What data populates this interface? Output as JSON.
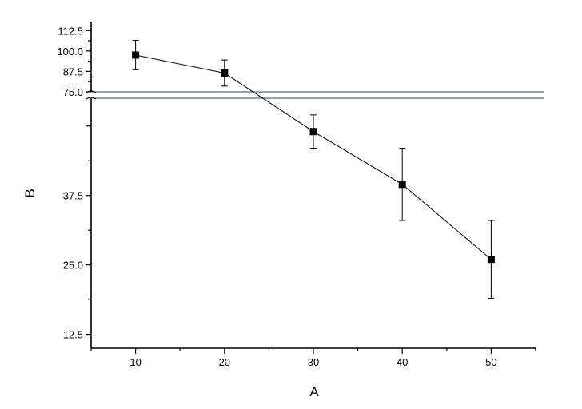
{
  "chart_data": {
    "type": "line",
    "title": "",
    "xlabel": "A",
    "ylabel": "B",
    "xlim": [
      5,
      55
    ],
    "x_ticks": [
      10,
      20,
      30,
      40,
      50
    ],
    "y_ticks_lower": [
      "12.5",
      "25.0",
      "37.5"
    ],
    "y_ticks_upper": [
      "75.0",
      "87.5",
      "100.0",
      "112.5"
    ],
    "y_axis_break": [
      55,
      75
    ],
    "ylim_lower": [
      10,
      55
    ],
    "ylim_upper": [
      75,
      118
    ],
    "grid": false,
    "legend": "none",
    "marker": "square",
    "line_color": "#000000",
    "break_line_color": "#4a6e96",
    "series": [
      {
        "x": [
          10,
          20,
          30,
          40,
          50
        ],
        "y": [
          97.5,
          86.5,
          49,
          39.5,
          26
        ],
        "error": [
          9,
          8,
          3,
          6.5,
          7
        ]
      }
    ]
  }
}
